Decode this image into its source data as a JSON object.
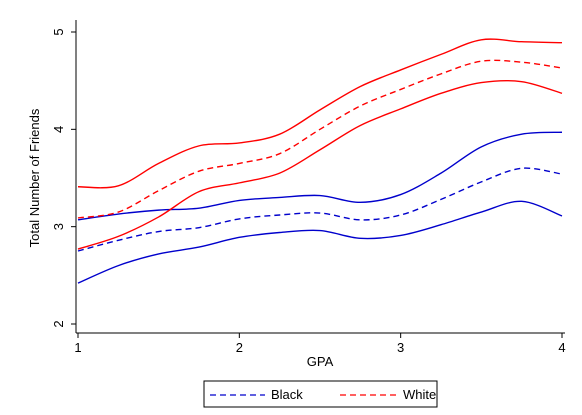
{
  "chart_data": {
    "type": "line",
    "title": "",
    "xlabel": "GPA",
    "ylabel": "Total Number of Friends",
    "xlim": [
      1,
      4
    ],
    "ylim": [
      2,
      5
    ],
    "xticks": [
      1,
      2,
      3,
      4
    ],
    "yticks": [
      2,
      3,
      4,
      5
    ],
    "x_tick_labels": [
      "1",
      "2",
      "3",
      "4"
    ],
    "y_tick_labels": [
      "2",
      "3",
      "4",
      "5"
    ],
    "grid": false,
    "legend_position": "bottom",
    "legend": [
      {
        "label": "Black",
        "color": "#0000cc",
        "dash": "dashed"
      },
      {
        "label": "White",
        "color": "#ff0000",
        "dash": "dashed"
      }
    ],
    "x": [
      1.0,
      1.25,
      1.5,
      1.75,
      2.0,
      2.25,
      2.5,
      2.75,
      3.0,
      3.25,
      3.5,
      3.75,
      4.0
    ],
    "series": [
      {
        "name": "Black",
        "color": "#0000cc",
        "style": "dashed",
        "values": [
          2.75,
          2.86,
          2.95,
          2.99,
          3.08,
          3.12,
          3.14,
          3.07,
          3.12,
          3.28,
          3.46,
          3.6,
          3.54
        ],
        "ci_upper": [
          3.07,
          3.13,
          3.17,
          3.19,
          3.27,
          3.3,
          3.32,
          3.25,
          3.33,
          3.55,
          3.82,
          3.95,
          3.97
        ],
        "ci_lower": [
          2.42,
          2.6,
          2.72,
          2.79,
          2.89,
          2.94,
          2.96,
          2.88,
          2.91,
          3.02,
          3.15,
          3.26,
          3.11
        ]
      },
      {
        "name": "White",
        "color": "#ff0000",
        "style": "dashed",
        "values": [
          3.09,
          3.15,
          3.37,
          3.57,
          3.65,
          3.75,
          4.0,
          4.24,
          4.41,
          4.57,
          4.7,
          4.69,
          4.63
        ],
        "ci_upper": [
          3.41,
          3.42,
          3.65,
          3.83,
          3.86,
          3.95,
          4.2,
          4.44,
          4.61,
          4.77,
          4.92,
          4.9,
          4.89
        ],
        "ci_lower": [
          2.77,
          2.9,
          3.1,
          3.36,
          3.45,
          3.55,
          3.79,
          4.04,
          4.21,
          4.37,
          4.48,
          4.49,
          4.37
        ]
      }
    ]
  }
}
